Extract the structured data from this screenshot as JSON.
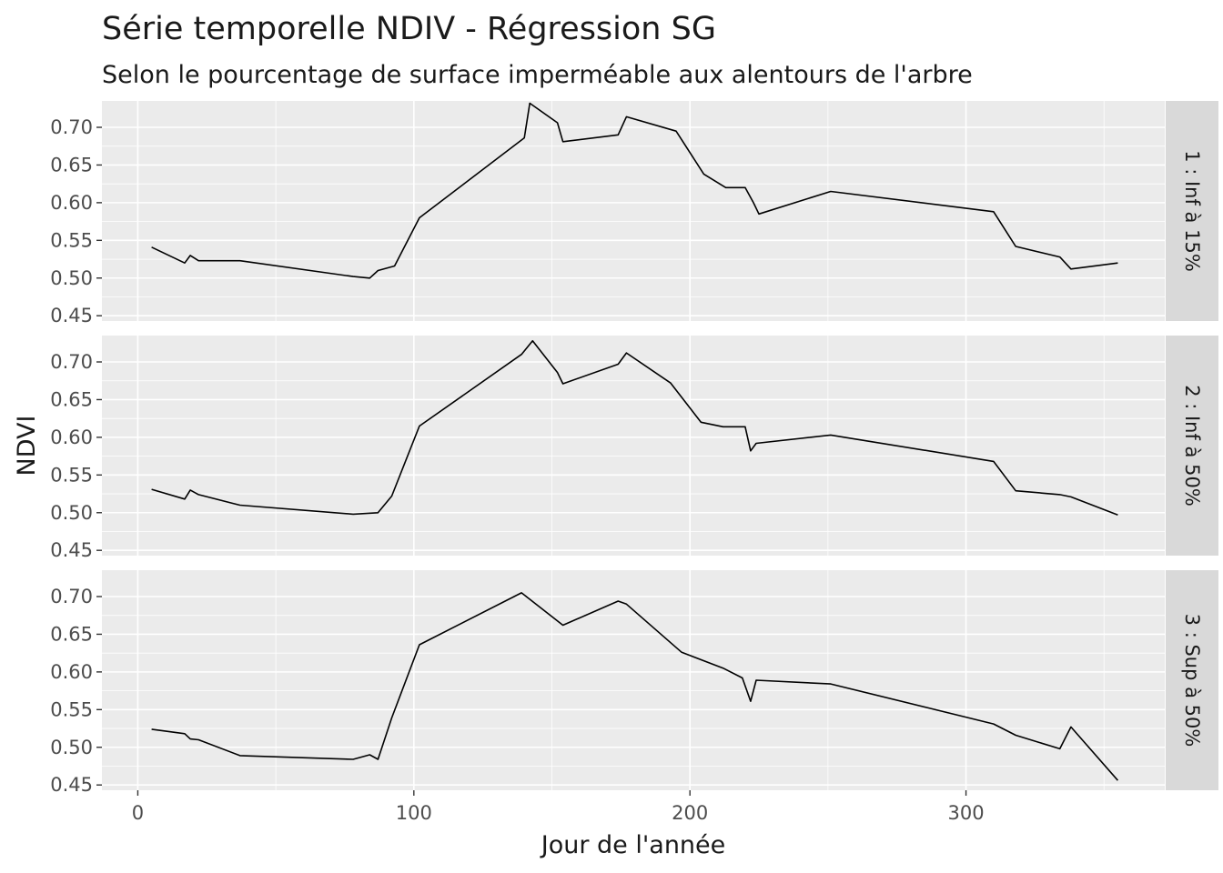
{
  "chart_data": {
    "type": "line",
    "title": "Série temporelle NDIV - Régression SG",
    "subtitle": "Selon le pourcentage de surface imperméable aux alentours de l'arbre",
    "xlabel": "Jour de l'année",
    "ylabel": "NDVI",
    "xlim": [
      -13,
      372
    ],
    "ylim": [
      0.443,
      0.735
    ],
    "x_ticks": [
      0,
      100,
      200,
      300
    ],
    "x_tick_labels": [
      "0",
      "100",
      "200",
      "300"
    ],
    "y_ticks": [
      0.45,
      0.5,
      0.55,
      0.6,
      0.65,
      0.7
    ],
    "y_tick_labels": [
      "0.45",
      "0.50",
      "0.55",
      "0.60",
      "0.65",
      "0.70"
    ],
    "grid": true,
    "line_color": "#000000",
    "panels": [
      {
        "label": "1 : Inf à 15%",
        "x": [
          5,
          17,
          19,
          22,
          37,
          78,
          84,
          87,
          93,
          102,
          140,
          142,
          152,
          154,
          174,
          177,
          195,
          205,
          213,
          220,
          223,
          225,
          251,
          310,
          318,
          334,
          338,
          355
        ],
        "y": [
          0.541,
          0.52,
          0.53,
          0.523,
          0.523,
          0.502,
          0.5,
          0.51,
          0.516,
          0.58,
          0.686,
          0.732,
          0.706,
          0.681,
          0.69,
          0.714,
          0.695,
          0.638,
          0.62,
          0.62,
          0.6,
          0.585,
          0.615,
          0.588,
          0.542,
          0.528,
          0.512,
          0.52
        ]
      },
      {
        "label": "2 : Inf à 50%",
        "x": [
          5,
          17,
          19,
          22,
          37,
          78,
          87,
          92,
          102,
          139,
          143,
          152,
          154,
          174,
          177,
          193,
          204,
          212,
          220,
          222,
          224,
          251,
          310,
          318,
          334,
          338,
          355
        ],
        "y": [
          0.531,
          0.518,
          0.53,
          0.524,
          0.51,
          0.498,
          0.5,
          0.522,
          0.615,
          0.71,
          0.728,
          0.686,
          0.671,
          0.697,
          0.712,
          0.672,
          0.62,
          0.614,
          0.614,
          0.582,
          0.592,
          0.603,
          0.568,
          0.529,
          0.524,
          0.521,
          0.497
        ]
      },
      {
        "label": "3 : Sup à 50%",
        "x": [
          5,
          17,
          19,
          22,
          37,
          78,
          84,
          87,
          92,
          102,
          139,
          154,
          174,
          177,
          197,
          212,
          219,
          222,
          224,
          251,
          310,
          318,
          334,
          338,
          355
        ],
        "y": [
          0.524,
          0.518,
          0.511,
          0.51,
          0.489,
          0.484,
          0.49,
          0.484,
          0.539,
          0.636,
          0.705,
          0.662,
          0.694,
          0.69,
          0.626,
          0.605,
          0.592,
          0.561,
          0.589,
          0.584,
          0.531,
          0.516,
          0.498,
          0.527,
          0.456
        ]
      }
    ]
  }
}
